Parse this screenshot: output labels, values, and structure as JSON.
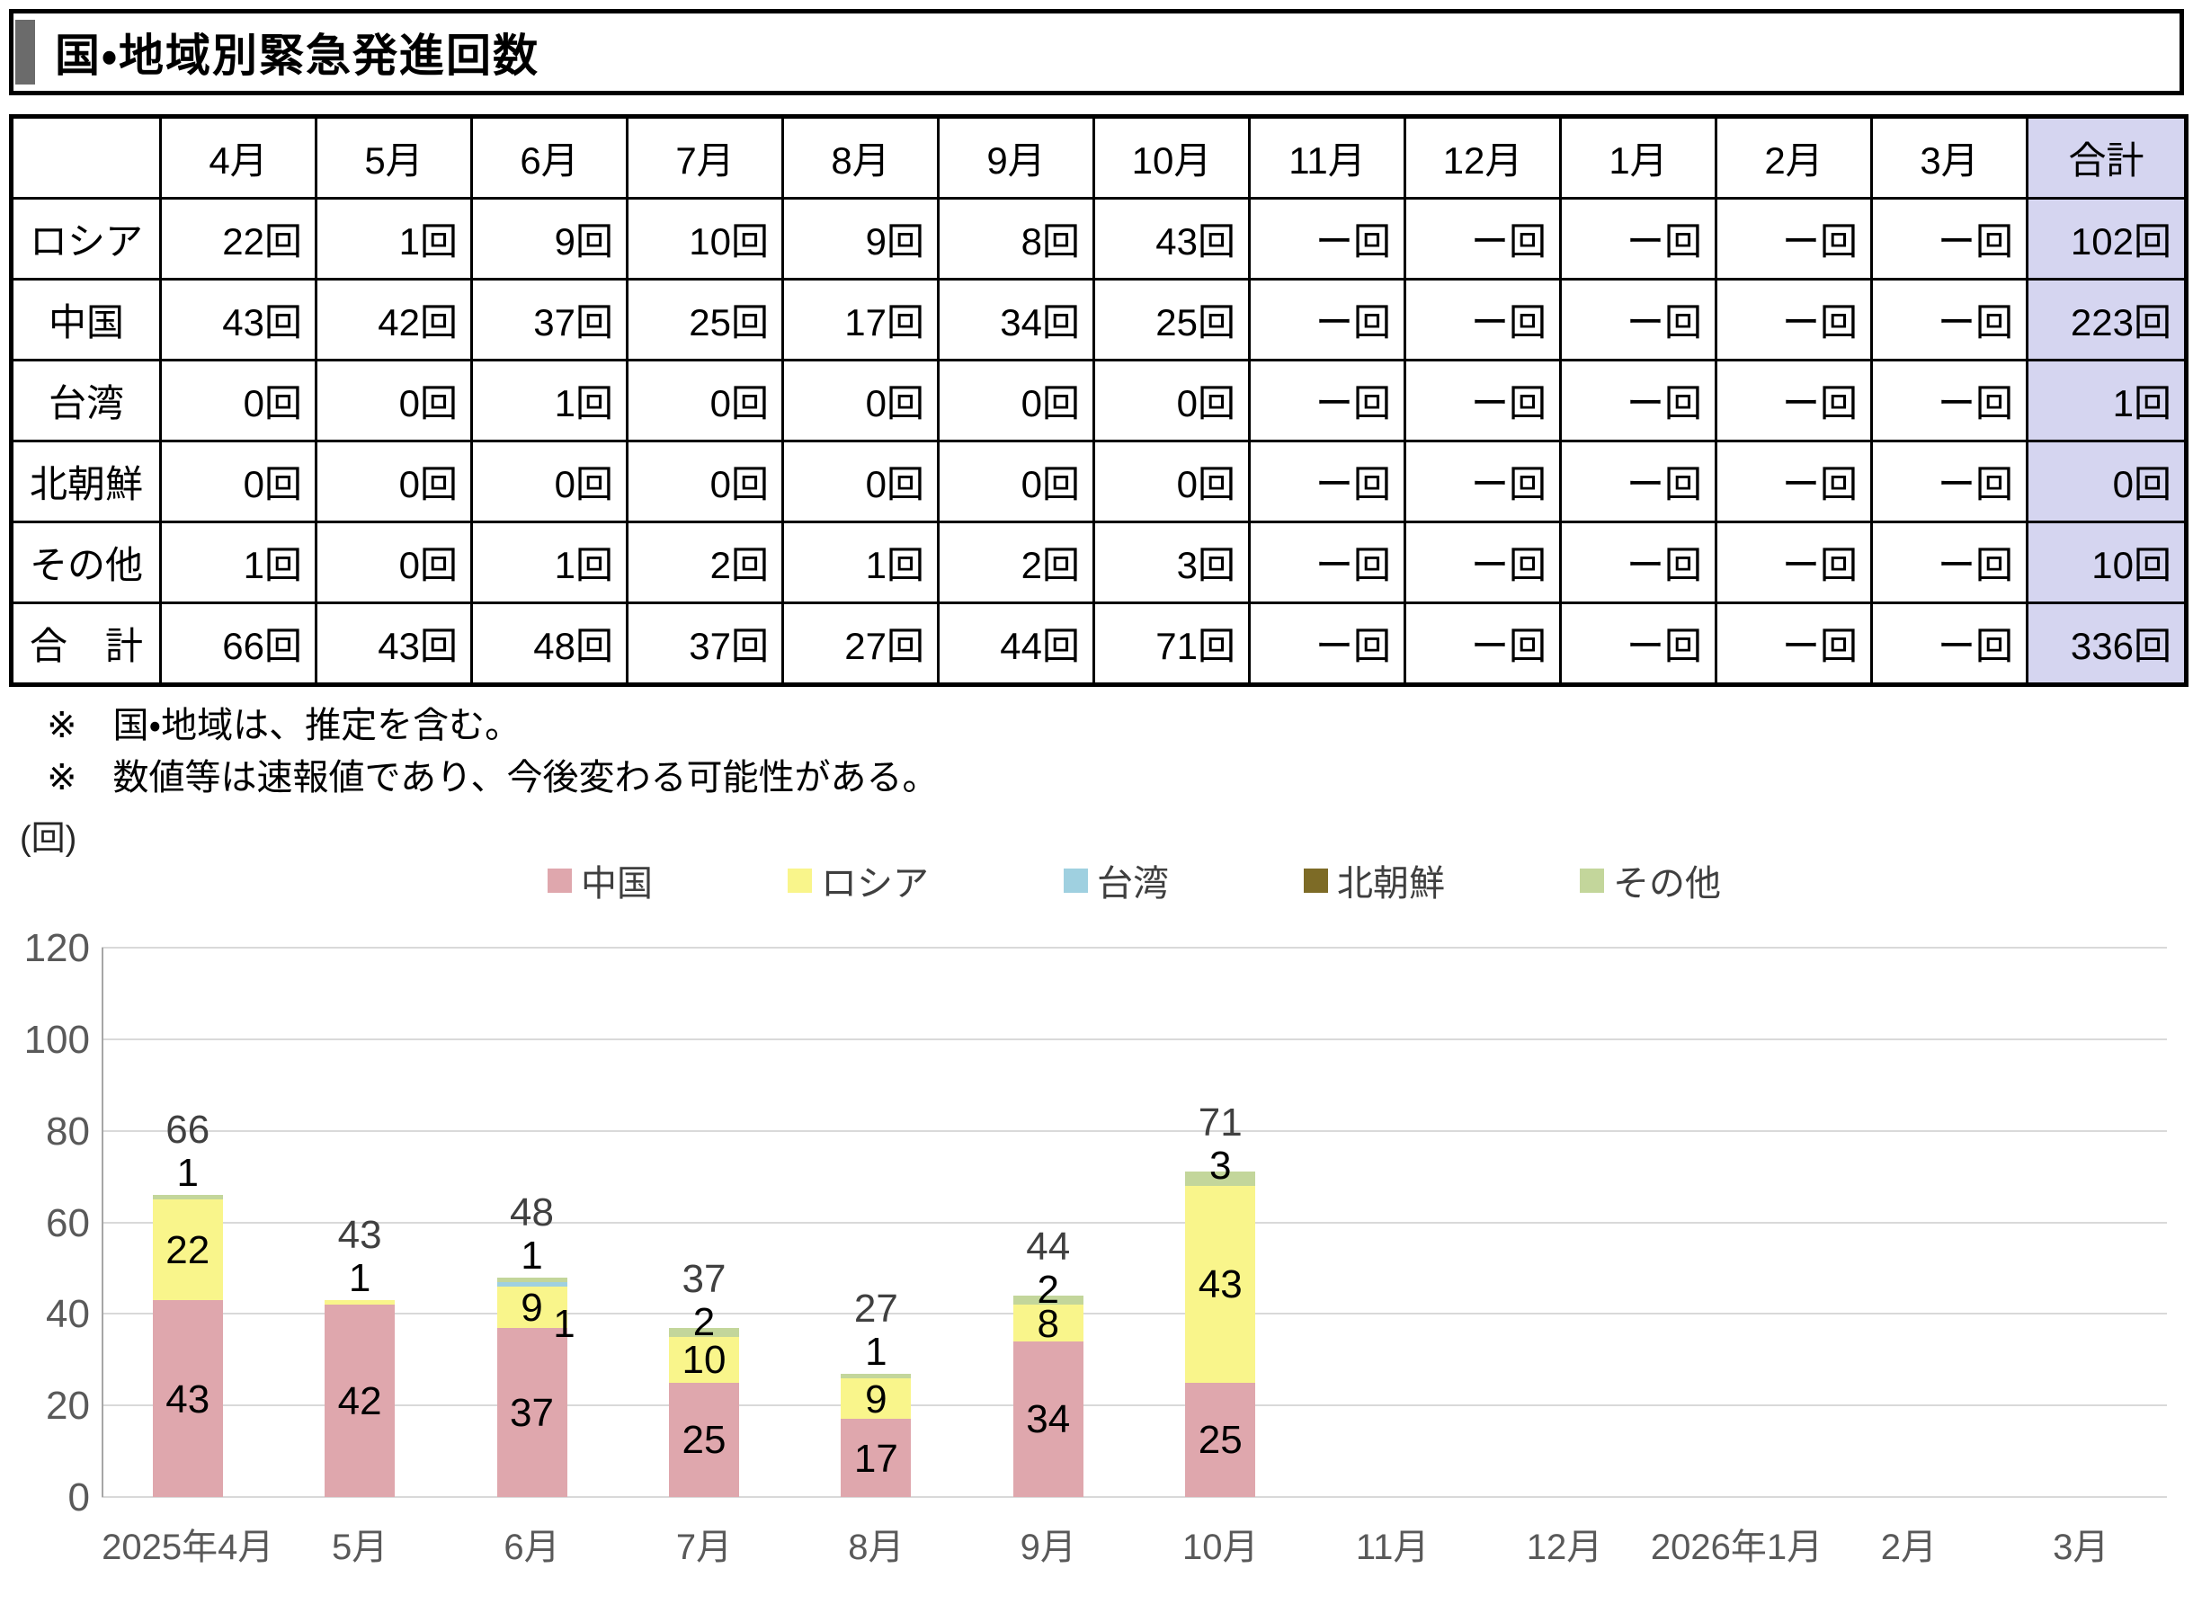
{
  "title": "国・地域別緊急発進回数",
  "table": {
    "columns": [
      "",
      "4月",
      "5月",
      "6月",
      "7月",
      "8月",
      "9月",
      "10月",
      "11月",
      "12月",
      "1月",
      "2月",
      "3月",
      "合計"
    ],
    "rows": [
      {
        "label": "ロシア",
        "values": [
          "22回",
          "1回",
          "9回",
          "10回",
          "9回",
          "8回",
          "43回",
          "ー回",
          "ー回",
          "ー回",
          "ー回",
          "ー回",
          "102回"
        ]
      },
      {
        "label": "中国",
        "values": [
          "43回",
          "42回",
          "37回",
          "25回",
          "17回",
          "34回",
          "25回",
          "ー回",
          "ー回",
          "ー回",
          "ー回",
          "ー回",
          "223回"
        ]
      },
      {
        "label": "台湾",
        "values": [
          "0回",
          "0回",
          "1回",
          "0回",
          "0回",
          "0回",
          "0回",
          "ー回",
          "ー回",
          "ー回",
          "ー回",
          "ー回",
          "1回"
        ]
      },
      {
        "label": "北朝鮮",
        "values": [
          "0回",
          "0回",
          "0回",
          "0回",
          "0回",
          "0回",
          "0回",
          "ー回",
          "ー回",
          "ー回",
          "ー回",
          "ー回",
          "0回"
        ]
      },
      {
        "label": "その他",
        "values": [
          "1回",
          "0回",
          "1回",
          "2回",
          "1回",
          "2回",
          "3回",
          "ー回",
          "ー回",
          "ー回",
          "ー回",
          "ー回",
          "10回"
        ]
      },
      {
        "label": "合　計",
        "values": [
          "66回",
          "43回",
          "48回",
          "37回",
          "27回",
          "44回",
          "71回",
          "ー回",
          "ー回",
          "ー回",
          "ー回",
          "ー回",
          "336回"
        ]
      }
    ]
  },
  "notes": [
    "※　国・地域は、推定を含む。",
    "※　数値等は速報値であり、今後変わる可能性がある。"
  ],
  "chart_data": {
    "type": "bar",
    "stacked": true,
    "title": "",
    "ylabel": "(回)",
    "ylim": [
      0,
      120
    ],
    "ytick_interval": 20,
    "grid": true,
    "legend_position": "top",
    "categories": [
      "2025年4月",
      "5月",
      "6月",
      "7月",
      "8月",
      "9月",
      "10月",
      "11月",
      "12月",
      "2026年1月",
      "2月",
      "3月"
    ],
    "series": [
      {
        "name": "中国",
        "color": "#dfa7ad",
        "values": [
          43,
          42,
          37,
          25,
          17,
          34,
          25,
          null,
          null,
          null,
          null,
          null
        ]
      },
      {
        "name": "ロシア",
        "color": "#f9f58b",
        "values": [
          22,
          1,
          9,
          10,
          9,
          8,
          43,
          null,
          null,
          null,
          null,
          null
        ]
      },
      {
        "name": "台湾",
        "color": "#9fd0e0",
        "values": [
          0,
          0,
          1,
          0,
          0,
          0,
          0,
          null,
          null,
          null,
          null,
          null
        ]
      },
      {
        "name": "北朝鮮",
        "color": "#7d6b26",
        "values": [
          0,
          0,
          0,
          0,
          0,
          0,
          0,
          null,
          null,
          null,
          null,
          null
        ]
      },
      {
        "name": "その他",
        "color": "#c3d69b",
        "values": [
          1,
          0,
          1,
          2,
          1,
          2,
          3,
          null,
          null,
          null,
          null,
          null
        ]
      }
    ],
    "totals": [
      66,
      43,
      48,
      37,
      27,
      44,
      71,
      null,
      null,
      null,
      null,
      null
    ]
  },
  "colors": {
    "total_column_bg": "#d5d5f0",
    "accent_bar": "#6b6b6b"
  }
}
